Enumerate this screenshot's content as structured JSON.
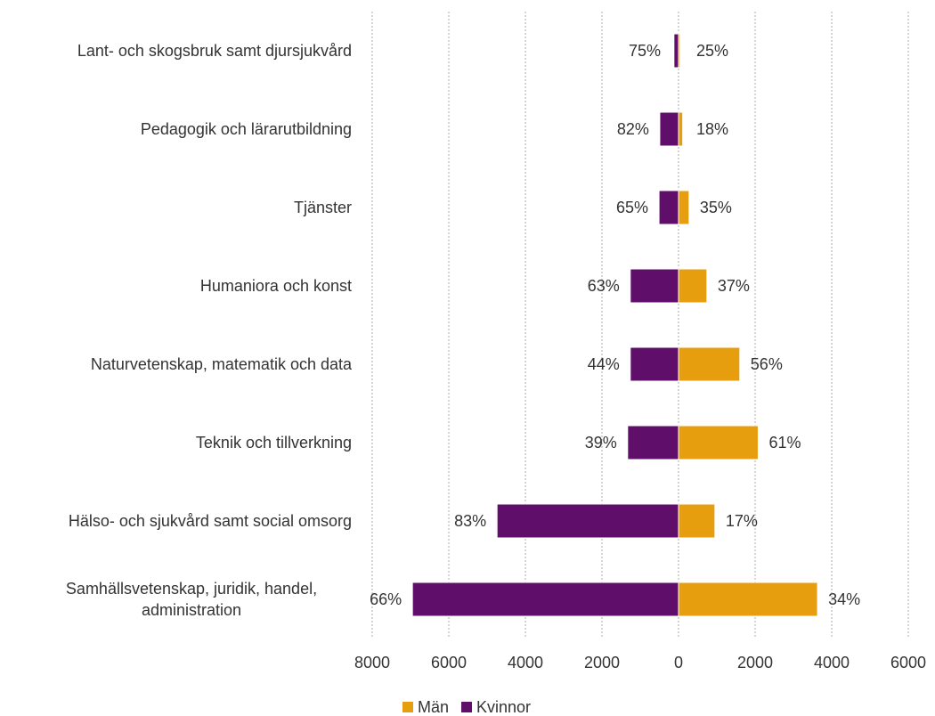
{
  "chart_data": {
    "type": "butterfly",
    "categories": [
      "Lant- och skogsbruk samt djursjukvård",
      "Pedagogik och lärarutbildning",
      "Tjänster",
      "Humaniora och konst",
      "Naturvetenskap, matematik och data",
      "Teknik och tillverkning",
      "Hälso- och sjukvård samt social omsorg",
      "Samhällsvetenskap, juridik, handel, administration"
    ],
    "series": [
      {
        "name": "Män",
        "color": "#e69e0f",
        "values": [
          40,
          108,
          275,
          740,
          1600,
          2080,
          950,
          3630
        ],
        "labels": [
          "25%",
          "18%",
          "35%",
          "37%",
          "56%",
          "61%",
          "17%",
          "34%"
        ]
      },
      {
        "name": "Kvinnor",
        "color": "#5f0f6a",
        "values": [
          -120,
          -490,
          -510,
          -1260,
          -1260,
          -1330,
          -4740,
          -6950
        ],
        "labels": [
          "75%",
          "82%",
          "65%",
          "63%",
          "44%",
          "39%",
          "83%",
          "66%"
        ]
      }
    ],
    "xlim": [
      -8000,
      6000
    ],
    "xticks": [
      {
        "value": -8000,
        "label": "8000"
      },
      {
        "value": -6000,
        "label": "6000"
      },
      {
        "value": -4000,
        "label": "4000"
      },
      {
        "value": -2000,
        "label": "2000"
      },
      0,
      2000,
      4000,
      6000
    ],
    "grid": true,
    "legend": "bottom"
  }
}
